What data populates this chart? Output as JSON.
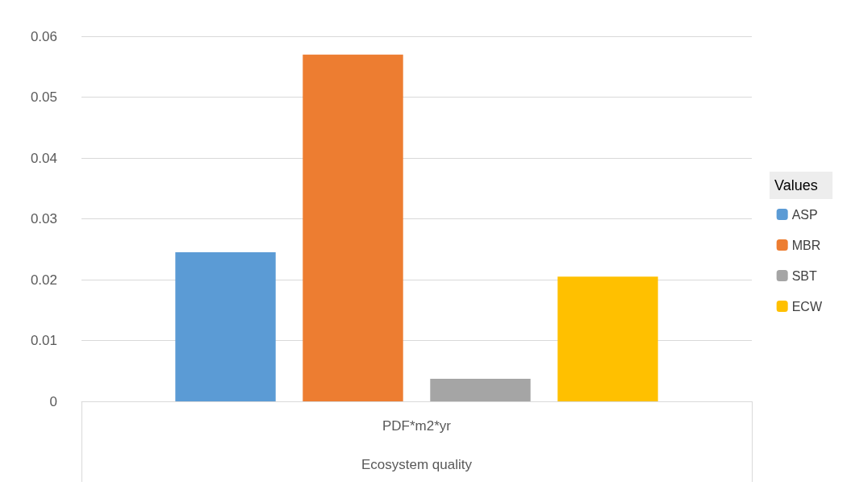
{
  "chart_data": {
    "type": "bar",
    "categories": [
      "PDF*m2*yr"
    ],
    "xlabel": "Ecosystem quality",
    "legend_title": "Values",
    "legend": "right",
    "series": [
      {
        "name": "ASP",
        "color": "#5b9bd5",
        "values": [
          0.0245
        ]
      },
      {
        "name": "MBR",
        "color": "#ed7d31",
        "values": [
          0.057
        ]
      },
      {
        "name": "SBT",
        "color": "#a5a5a5",
        "values": [
          0.0037
        ]
      },
      {
        "name": "ECW",
        "color": "#ffc000",
        "values": [
          0.0205
        ]
      }
    ],
    "ylim": [
      0,
      0.06
    ],
    "yticks": [
      0,
      0.01,
      0.02,
      0.03,
      0.04,
      0.05,
      0.06
    ],
    "grid": "y"
  }
}
